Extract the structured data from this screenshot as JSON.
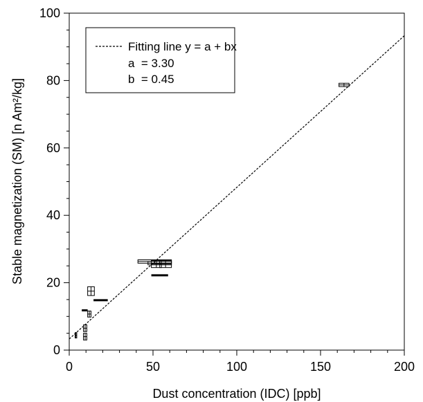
{
  "chart_data": {
    "type": "scatter",
    "xlabel": "Dust concentration (IDC) [ppb]",
    "ylabel": "Stable magnetization (SM) [n Am²/kg]",
    "xlim": [
      0,
      200
    ],
    "ylim": [
      0,
      100
    ],
    "x_ticks": [
      0,
      50,
      100,
      150,
      200
    ],
    "y_ticks": [
      0,
      20,
      40,
      60,
      80,
      100
    ],
    "grid": false,
    "legend": {
      "position": "top-left",
      "line1": "Fitting line y = a + bx",
      "line2": "a  = 3.30",
      "line3": "b  = 0.45"
    },
    "fit": {
      "a": 3.3,
      "b": 0.45,
      "style": "dashed"
    },
    "boxes": [
      {
        "x": [
          3.5,
          4.5
        ],
        "y": [
          3.6,
          5.2
        ]
      },
      {
        "x": [
          8.5,
          10.5
        ],
        "y": [
          3.0,
          5.0
        ]
      },
      {
        "x": [
          8.5,
          10.5
        ],
        "y": [
          5.5,
          7.5
        ]
      },
      {
        "x": [
          11,
          13
        ],
        "y": [
          9.8,
          11.6
        ]
      },
      {
        "x": [
          11,
          15
        ],
        "y": [
          16.2,
          18.8
        ]
      },
      {
        "x": [
          161,
          167
        ],
        "y": [
          78.2,
          79.2
        ]
      },
      {
        "x": [
          41,
          61
        ],
        "y": [
          25.8,
          26.8
        ]
      },
      {
        "x": [
          49,
          55
        ],
        "y": [
          24.5,
          26.6
        ]
      },
      {
        "x": [
          54,
          61
        ],
        "y": [
          24.5,
          26.6
        ]
      },
      {
        "x": [
          47,
          61
        ],
        "y": [
          25.3,
          26.3
        ]
      }
    ],
    "bars": [
      {
        "x": [
          7.5,
          11
        ],
        "y": 11.8
      },
      {
        "x": [
          14.5,
          23
        ],
        "y": 14.8
      },
      {
        "x": [
          49,
          59
        ],
        "y": 22.2
      }
    ]
  }
}
